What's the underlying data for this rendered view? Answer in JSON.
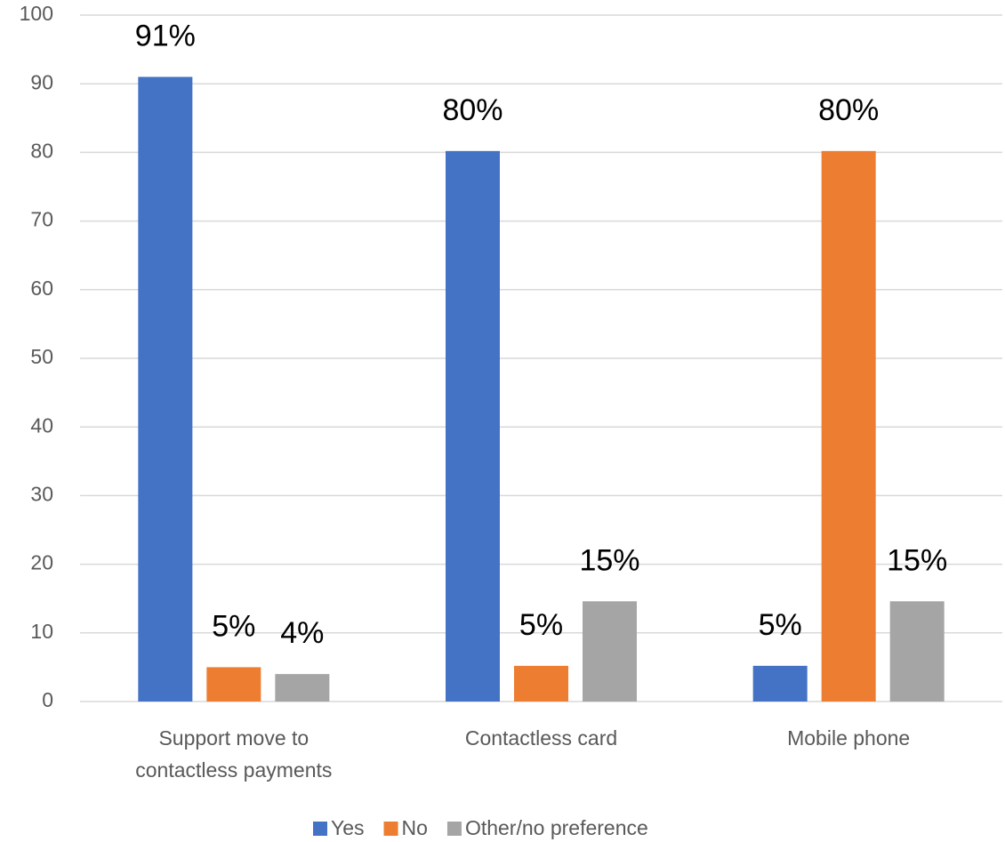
{
  "chart_data": {
    "type": "bar",
    "categories": [
      "Support move to contactless payments",
      "Contactless card",
      "Mobile phone"
    ],
    "series": [
      {
        "name": "Yes",
        "color": "#4472c4",
        "values": [
          91,
          80.2,
          5.2
        ],
        "value_labels": [
          "91%",
          "80%",
          "5%"
        ]
      },
      {
        "name": "No",
        "color": "#ed7d31",
        "values": [
          5,
          5.2,
          80.2
        ],
        "value_labels": [
          "5%",
          "5%",
          "80%"
        ]
      },
      {
        "name": "Other/no preference",
        "color": "#a5a5a5",
        "values": [
          4,
          14.6,
          14.6
        ],
        "value_labels": [
          "4%",
          "15%",
          "15%"
        ]
      }
    ],
    "ylim": [
      0,
      100
    ],
    "yticks": [
      0,
      10,
      20,
      30,
      40,
      50,
      60,
      70,
      80,
      90,
      100
    ],
    "grid": true,
    "legend": "bottom"
  }
}
